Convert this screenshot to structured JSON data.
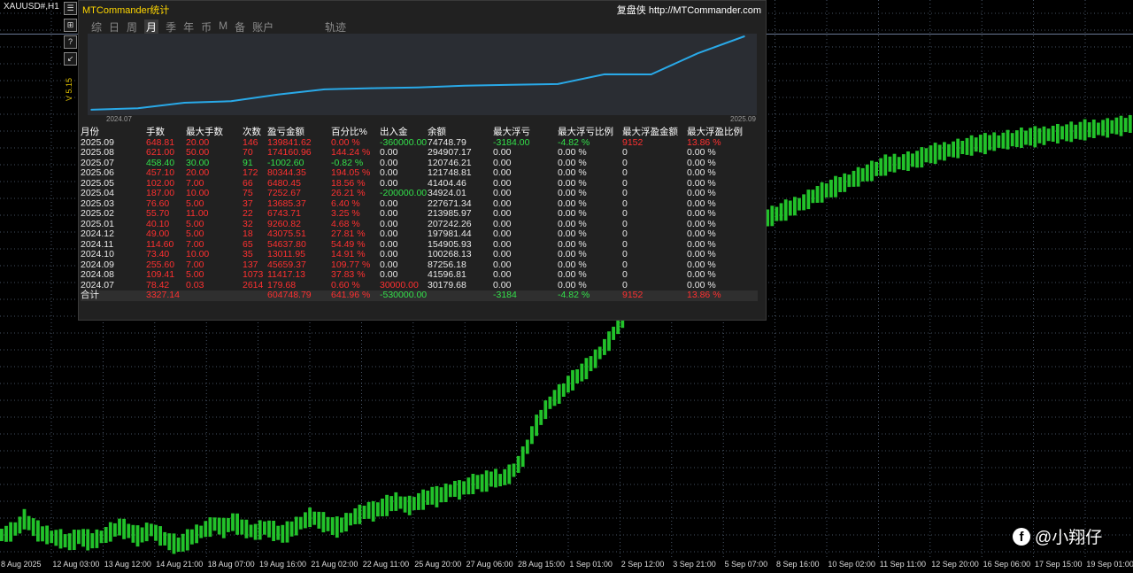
{
  "chart_window": {
    "symbol_label": "XAUUSD#,H1",
    "toolbar_buttons": [
      "☰",
      "⊞",
      "?",
      "↙"
    ],
    "version_label": "V 5.15",
    "price_series": [
      120,
      121,
      123,
      126,
      130,
      136,
      132,
      128,
      124,
      121,
      120,
      118,
      117,
      116,
      114,
      113,
      115,
      118,
      117,
      115,
      114,
      116,
      118,
      120,
      123,
      125,
      128,
      126,
      124,
      121,
      119,
      120,
      123,
      125,
      122,
      119,
      116,
      113,
      111,
      110,
      112,
      115,
      118,
      121,
      123,
      126,
      128,
      131,
      129,
      127,
      130,
      133,
      131,
      128,
      126,
      124,
      123,
      125,
      127,
      126,
      124,
      122,
      121,
      123,
      126,
      129,
      132,
      135,
      138,
      137,
      135,
      133,
      131,
      129,
      128,
      130,
      133,
      136,
      139,
      141,
      143,
      145,
      144,
      146,
      148,
      150,
      152,
      154,
      153,
      151,
      150,
      152,
      154,
      156,
      158,
      160,
      159,
      161,
      163,
      165,
      167,
      166,
      168,
      170,
      172,
      174,
      173,
      175,
      177,
      178,
      176,
      179,
      182,
      186,
      192,
      200,
      210,
      222,
      232,
      240,
      248,
      255,
      260,
      264,
      268,
      274,
      278,
      282,
      286,
      290,
      295,
      300,
      306,
      312,
      318,
      326,
      334,
      342,
      350,
      360,
      370,
      380,
      388,
      394,
      398,
      402,
      405,
      406,
      408,
      410,
      412,
      414,
      416,
      418,
      420,
      421,
      422,
      424,
      425,
      426,
      428,
      430,
      432,
      433,
      434,
      436,
      438,
      440,
      442,
      444,
      446,
      448,
      450,
      452,
      454,
      456,
      458,
      460,
      463,
      466,
      468,
      470,
      472,
      474,
      476,
      478,
      480,
      482,
      484,
      486,
      488,
      490,
      492,
      494,
      496,
      498,
      499,
      500,
      500,
      501,
      502,
      503,
      504,
      506,
      508,
      509,
      510,
      511,
      512,
      513,
      514,
      515,
      516,
      517,
      518,
      519,
      520,
      520,
      521,
      522,
      522,
      523,
      524,
      524,
      525,
      526,
      526,
      527,
      527,
      528,
      528,
      529,
      530,
      530,
      531,
      531,
      532,
      532,
      533,
      534,
      534,
      535,
      535,
      536,
      536,
      537,
      538,
      538,
      539,
      540
    ],
    "time_labels": [
      "8 Aug 2025",
      "12 Aug 03:00",
      "13 Aug 12:00",
      "14 Aug 21:00",
      "18 Aug 07:00",
      "19 Aug 16:00",
      "21 Aug 02:00",
      "22 Aug 11:00",
      "25 Aug 20:00",
      "27 Aug 06:00",
      "28 Aug 15:00",
      "1 Sep 01:00",
      "2 Sep 12:00",
      "3 Sep 21:00",
      "5 Sep 07:00",
      "8 Sep 16:00",
      "10 Sep 02:00",
      "11 Sep 11:00",
      "12 Sep 20:00",
      "16 Sep 06:00",
      "17 Sep 15:00",
      "19 Sep 01:00"
    ]
  },
  "panel": {
    "title": "MTCommander统计",
    "link": "复盘侠 http://MTCommander.com",
    "tabs": [
      "综",
      "日",
      "周",
      "月",
      "季",
      "年",
      "币",
      "M",
      "备",
      "账户"
    ],
    "active_tab": "月",
    "extra_tab": "轨迹",
    "equity_axis_start": "2024.07",
    "equity_axis_end": "2025.09",
    "table": {
      "headers": [
        "月份",
        "手数",
        "最大手数",
        "次数",
        "盈亏金额",
        "百分比%",
        "出入金",
        "余额",
        "最大浮亏",
        "最大浮亏比例",
        "最大浮盈金额",
        "最大浮盈比例"
      ],
      "rows": [
        [
          "2025.09",
          "648.81",
          "20.00",
          "146",
          "139841.62",
          "0.00 %",
          "-360000.00",
          "74748.79",
          "-3184.00",
          "-4.82 %",
          "9152",
          "13.86 %"
        ],
        [
          "2025.08",
          "621.00",
          "50.00",
          "70",
          "174160.96",
          "144.24 %",
          "0.00",
          "294907.17",
          "0.00",
          "0.00 %",
          "0",
          "0.00 %"
        ],
        [
          "2025.07",
          "458.40",
          "30.00",
          "91",
          "-1002.60",
          "-0.82 %",
          "0.00",
          "120746.21",
          "0.00",
          "0.00 %",
          "0",
          "0.00 %"
        ],
        [
          "2025.06",
          "457.10",
          "20.00",
          "172",
          "80344.35",
          "194.05 %",
          "0.00",
          "121748.81",
          "0.00",
          "0.00 %",
          "0",
          "0.00 %"
        ],
        [
          "2025.05",
          "102.00",
          "7.00",
          "66",
          "6480.45",
          "18.56 %",
          "0.00",
          "41404.46",
          "0.00",
          "0.00 %",
          "0",
          "0.00 %"
        ],
        [
          "2025.04",
          "187.00",
          "10.00",
          "75",
          "7252.67",
          "26.21 %",
          "-200000.00",
          "34924.01",
          "0.00",
          "0.00 %",
          "0",
          "0.00 %"
        ],
        [
          "2025.03",
          "76.60",
          "5.00",
          "37",
          "13685.37",
          "6.40 %",
          "0.00",
          "227671.34",
          "0.00",
          "0.00 %",
          "0",
          "0.00 %"
        ],
        [
          "2025.02",
          "55.70",
          "11.00",
          "22",
          "6743.71",
          "3.25 %",
          "0.00",
          "213985.97",
          "0.00",
          "0.00 %",
          "0",
          "0.00 %"
        ],
        [
          "2025.01",
          "40.10",
          "5.00",
          "32",
          "9260.82",
          "4.68 %",
          "0.00",
          "207242.26",
          "0.00",
          "0.00 %",
          "0",
          "0.00 %"
        ],
        [
          "2024.12",
          "49.00",
          "5.00",
          "18",
          "43075.51",
          "27.81 %",
          "0.00",
          "197981.44",
          "0.00",
          "0.00 %",
          "0",
          "0.00 %"
        ],
        [
          "2024.11",
          "114.60",
          "7.00",
          "65",
          "54637.80",
          "54.49 %",
          "0.00",
          "154905.93",
          "0.00",
          "0.00 %",
          "0",
          "0.00 %"
        ],
        [
          "2024.10",
          "73.40",
          "10.00",
          "35",
          "13011.95",
          "14.91 %",
          "0.00",
          "100268.13",
          "0.00",
          "0.00 %",
          "0",
          "0.00 %"
        ],
        [
          "2024.09",
          "255.60",
          "7.00",
          "137",
          "45659.37",
          "109.77 %",
          "0.00",
          "87256.18",
          "0.00",
          "0.00 %",
          "0",
          "0.00 %"
        ],
        [
          "2024.08",
          "109.41",
          "5.00",
          "1073",
          "11417.13",
          "37.83 %",
          "0.00",
          "41596.81",
          "0.00",
          "0.00 %",
          "0",
          "0.00 %"
        ],
        [
          "2024.07",
          "78.42",
          "0.03",
          "2614",
          "179.68",
          "0.60 %",
          "30000.00",
          "30179.68",
          "0.00",
          "0.00 %",
          "0",
          "0.00 %"
        ]
      ],
      "row_colors": [
        [
          "w",
          "r",
          "r",
          "r",
          "r",
          "r",
          "g",
          "w",
          "g",
          "g",
          "r",
          "r"
        ],
        [
          "w",
          "r",
          "r",
          "r",
          "r",
          "r",
          "w",
          "w",
          "w",
          "w",
          "w",
          "w"
        ],
        [
          "w",
          "g",
          "g",
          "g",
          "g",
          "g",
          "w",
          "w",
          "w",
          "w",
          "w",
          "w"
        ],
        [
          "w",
          "r",
          "r",
          "r",
          "r",
          "r",
          "w",
          "w",
          "w",
          "w",
          "w",
          "w"
        ],
        [
          "w",
          "r",
          "r",
          "r",
          "r",
          "r",
          "w",
          "w",
          "w",
          "w",
          "w",
          "w"
        ],
        [
          "w",
          "r",
          "r",
          "r",
          "r",
          "r",
          "g",
          "w",
          "w",
          "w",
          "w",
          "w"
        ],
        [
          "w",
          "r",
          "r",
          "r",
          "r",
          "r",
          "w",
          "w",
          "w",
          "w",
          "w",
          "w"
        ],
        [
          "w",
          "r",
          "r",
          "r",
          "r",
          "r",
          "w",
          "w",
          "w",
          "w",
          "w",
          "w"
        ],
        [
          "w",
          "r",
          "r",
          "r",
          "r",
          "r",
          "w",
          "w",
          "w",
          "w",
          "w",
          "w"
        ],
        [
          "w",
          "r",
          "r",
          "r",
          "r",
          "r",
          "w",
          "w",
          "w",
          "w",
          "w",
          "w"
        ],
        [
          "w",
          "r",
          "r",
          "r",
          "r",
          "r",
          "w",
          "w",
          "w",
          "w",
          "w",
          "w"
        ],
        [
          "w",
          "r",
          "r",
          "r",
          "r",
          "r",
          "w",
          "w",
          "w",
          "w",
          "w",
          "w"
        ],
        [
          "w",
          "r",
          "r",
          "r",
          "r",
          "r",
          "w",
          "w",
          "w",
          "w",
          "w",
          "w"
        ],
        [
          "w",
          "r",
          "r",
          "r",
          "r",
          "r",
          "w",
          "w",
          "w",
          "w",
          "w",
          "w"
        ],
        [
          "w",
          "r",
          "r",
          "r",
          "r",
          "r",
          "r",
          "w",
          "w",
          "w",
          "w",
          "w"
        ]
      ],
      "total": [
        "合计",
        "3327.14",
        "",
        "",
        "604748.79",
        "641.96 %",
        "-530000.00",
        "",
        "-3184",
        "-4.82 %",
        "9152",
        "13.86 %"
      ],
      "total_colors": [
        "w",
        "r",
        "w",
        "w",
        "r",
        "r",
        "g",
        "w",
        "g",
        "g",
        "r",
        "r"
      ]
    }
  },
  "watermark": {
    "text": "@小翔仔"
  },
  "colors": {
    "candles": "#22c22a",
    "equity_line": "#29a9e8",
    "grid": "#5a6a80"
  },
  "chart_data": {
    "type": "line",
    "x": [
      "2024.07",
      "2024.08",
      "2024.09",
      "2024.10",
      "2024.11",
      "2024.12",
      "2025.01",
      "2025.02",
      "2025.03",
      "2025.04",
      "2025.05",
      "2025.06",
      "2025.07",
      "2025.08",
      "2025.09"
    ],
    "values": [
      30179.68,
      41596.81,
      87256.18,
      100268.13,
      154905.93,
      197981.44,
      207242.26,
      213985.97,
      227671.34,
      234924.01,
      241404.46,
      321748.81,
      320746.21,
      494907.17,
      634748.79
    ]
  }
}
